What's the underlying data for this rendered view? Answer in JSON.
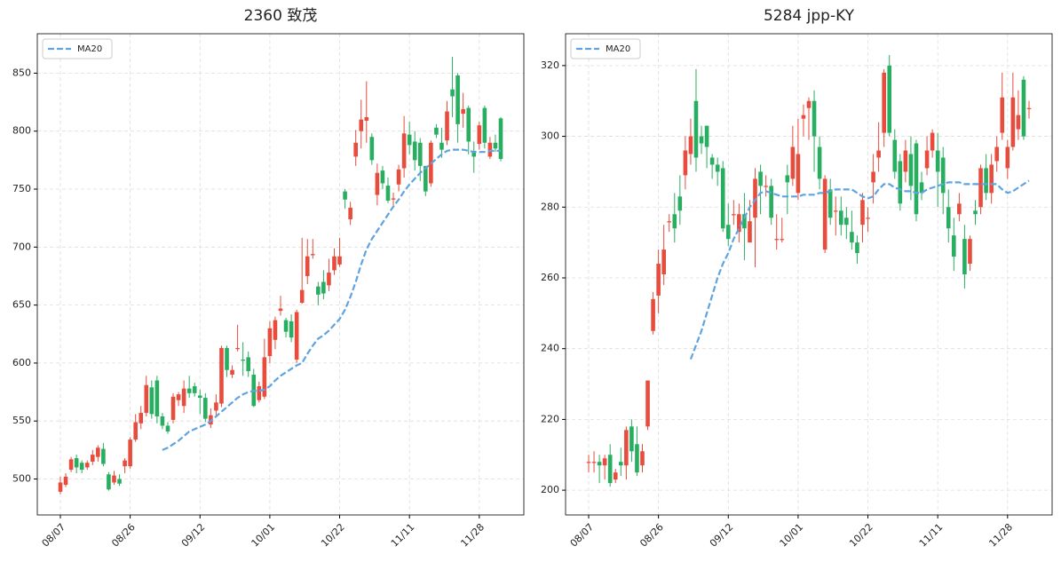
{
  "chart_data": [
    {
      "type": "candlestick",
      "title": "2360 致茂",
      "categories": [
        "08/07",
        null,
        null,
        null,
        null,
        null,
        null,
        null,
        null,
        null,
        null,
        null,
        null,
        "08/26",
        null,
        null,
        null,
        null,
        null,
        null,
        null,
        null,
        null,
        null,
        null,
        null,
        "09/12",
        null,
        null,
        null,
        null,
        null,
        null,
        null,
        null,
        null,
        null,
        null,
        null,
        "10/01",
        null,
        null,
        null,
        null,
        null,
        null,
        null,
        null,
        null,
        null,
        null,
        null,
        "10/22",
        null,
        null,
        null,
        null,
        null,
        null,
        null,
        null,
        null,
        null,
        null,
        null,
        "11/11",
        null,
        null,
        null,
        null,
        null,
        null,
        null,
        null,
        null,
        null,
        null,
        null,
        "11/28",
        null,
        null,
        null,
        null
      ],
      "open": [
        489,
        495,
        508,
        518,
        514,
        510,
        515,
        519,
        526,
        504,
        497,
        500,
        511,
        511,
        534,
        548,
        557,
        579,
        585,
        554,
        546,
        551,
        568,
        563,
        578,
        580,
        572,
        570,
        547,
        559,
        565,
        613,
        590,
        612,
        603,
        605,
        590,
        568,
        571,
        606,
        620,
        645,
        637,
        636,
        603,
        652,
        675,
        693,
        666,
        670,
        667,
        680,
        685,
        748,
        724,
        778,
        800,
        809,
        795,
        745,
        766,
        753,
        741,
        754,
        768,
        797,
        791,
        790,
        770,
        755,
        803,
        790,
        792,
        836,
        848,
        815,
        820,
        783,
        789,
        820,
        778,
        790,
        811
      ],
      "high": [
        502,
        505,
        519,
        521,
        516,
        516,
        525,
        529,
        531,
        506,
        507,
        504,
        518,
        536,
        556,
        563,
        589,
        585,
        589,
        557,
        549,
        574,
        575,
        585,
        589,
        583,
        577,
        574,
        561,
        573,
        615,
        615,
        598,
        633,
        618,
        610,
        595,
        584,
        621,
        636,
        640,
        658,
        639,
        642,
        646,
        708,
        707,
        707,
        670,
        680,
        690,
        699,
        708,
        750,
        739,
        801,
        827,
        843,
        798,
        772,
        770,
        760,
        747,
        771,
        813,
        808,
        800,
        794,
        770,
        792,
        806,
        803,
        826,
        864,
        850,
        833,
        822,
        791,
        808,
        822,
        795,
        797,
        812
      ],
      "low": [
        487,
        493,
        506,
        505,
        505,
        508,
        512,
        515,
        511,
        490,
        495,
        494,
        505,
        509,
        532,
        543,
        554,
        552,
        548,
        543,
        539,
        548,
        563,
        557,
        570,
        571,
        556,
        549,
        544,
        555,
        562,
        588,
        587,
        610,
        589,
        588,
        562,
        566,
        569,
        600,
        612,
        641,
        622,
        618,
        600,
        651,
        668,
        690,
        650,
        655,
        662,
        676,
        683,
        733,
        719,
        770,
        785,
        790,
        771,
        736,
        750,
        738,
        736,
        748,
        760,
        780,
        766,
        757,
        744,
        752,
        794,
        777,
        788,
        812,
        790,
        803,
        780,
        764,
        784,
        785,
        776,
        782,
        774
      ],
      "close": [
        497,
        502,
        517,
        510,
        508,
        514,
        521,
        527,
        513,
        491,
        503,
        496,
        516,
        534,
        549,
        557,
        581,
        556,
        554,
        546,
        541,
        571,
        573,
        578,
        574,
        574,
        570,
        552,
        555,
        566,
        613,
        594,
        594,
        613,
        602,
        593,
        563,
        580,
        605,
        630,
        637,
        647,
        627,
        622,
        644,
        663,
        692,
        694,
        659,
        660,
        678,
        692,
        692,
        741,
        734,
        790,
        810,
        812,
        775,
        764,
        755,
        740,
        742,
        767,
        798,
        788,
        775,
        770,
        748,
        790,
        797,
        784,
        817,
        830,
        806,
        819,
        791,
        778,
        805,
        790,
        790,
        785,
        776
      ],
      "up_color": "#e74c3c",
      "down_color": "#27ae60",
      "series": [
        {
          "name": "MA20",
          "color": "#5fa3e0",
          "values": [
            null,
            null,
            null,
            null,
            null,
            null,
            null,
            null,
            null,
            null,
            null,
            null,
            null,
            null,
            null,
            null,
            null,
            null,
            null,
            525,
            527,
            530,
            533,
            537,
            541,
            543,
            545,
            547,
            550,
            554,
            558,
            562,
            566,
            570,
            573,
            575,
            576,
            576,
            577,
            580,
            585,
            589,
            592,
            595,
            598,
            600,
            608,
            615,
            621,
            624,
            628,
            633,
            638,
            646,
            657,
            670,
            685,
            698,
            707,
            714,
            721,
            728,
            735,
            741,
            748,
            754,
            759,
            764,
            768,
            772,
            776,
            780,
            783,
            784,
            784,
            784,
            783,
            782,
            782,
            782,
            783,
            783,
            783
          ]
        }
      ],
      "ylim": [
        469,
        884
      ],
      "yticks": [
        500,
        550,
        600,
        650,
        700,
        750,
        800,
        850
      ],
      "grid": true,
      "legend": "upper left"
    },
    {
      "type": "candlestick",
      "title": "5284 jpp-KY",
      "categories": [
        "08/07",
        null,
        null,
        null,
        null,
        null,
        null,
        null,
        null,
        null,
        null,
        null,
        null,
        "08/26",
        null,
        null,
        null,
        null,
        null,
        null,
        null,
        null,
        null,
        null,
        null,
        null,
        "09/12",
        null,
        null,
        null,
        null,
        null,
        null,
        null,
        null,
        null,
        null,
        null,
        null,
        "10/01",
        null,
        null,
        null,
        null,
        null,
        null,
        null,
        null,
        null,
        null,
        null,
        null,
        "10/22",
        null,
        null,
        null,
        null,
        null,
        null,
        null,
        null,
        null,
        null,
        null,
        null,
        "11/11",
        null,
        null,
        null,
        null,
        null,
        null,
        null,
        null,
        null,
        null,
        null,
        null,
        "11/28",
        null,
        null,
        null,
        null
      ],
      "open": [
        208,
        208,
        208,
        207,
        210,
        203,
        208,
        207,
        218,
        213,
        207,
        218,
        245,
        255,
        261,
        276,
        278,
        283,
        289,
        295,
        310,
        300,
        303,
        294,
        292,
        291,
        275,
        278,
        273,
        278,
        270,
        277,
        290,
        286,
        286,
        271,
        271,
        289,
        288,
        284,
        305,
        308,
        310,
        297,
        268,
        285,
        279,
        279,
        277,
        273,
        270,
        275,
        277,
        287,
        294,
        301,
        320,
        299,
        293,
        290,
        295,
        298,
        287,
        291,
        296,
        296,
        294,
        280,
        272,
        278,
        271,
        264,
        279,
        280,
        291,
        284,
        293,
        301,
        291,
        297,
        302,
        316,
        308
      ],
      "high": [
        210,
        211,
        210,
        210,
        213,
        206,
        212,
        218,
        220,
        218,
        213,
        231,
        256,
        268,
        275,
        278,
        284,
        289,
        300,
        305,
        319,
        303,
        303,
        295,
        294,
        293,
        281,
        282,
        281,
        284,
        282,
        291,
        292,
        289,
        288,
        278,
        277,
        292,
        303,
        305,
        309,
        311,
        313,
        300,
        289,
        288,
        283,
        283,
        280,
        279,
        272,
        284,
        280,
        295,
        304,
        319,
        323,
        302,
        295,
        299,
        300,
        299,
        290,
        300,
        302,
        301,
        297,
        285,
        277,
        284,
        275,
        272,
        282,
        292,
        295,
        295,
        300,
        318,
        299,
        318,
        313,
        317,
        310
      ],
      "low": [
        205,
        205,
        202,
        203,
        201,
        202,
        204,
        203,
        208,
        204,
        205,
        217,
        244,
        250,
        258,
        273,
        270,
        275,
        285,
        292,
        290,
        295,
        291,
        288,
        286,
        273,
        269,
        275,
        270,
        265,
        270,
        263,
        278,
        283,
        275,
        268,
        270,
        278,
        286,
        282,
        300,
        299,
        290,
        285,
        267,
        275,
        272,
        272,
        271,
        268,
        264,
        270,
        273,
        281,
        290,
        297,
        300,
        288,
        279,
        287,
        282,
        276,
        282,
        289,
        294,
        280,
        278,
        270,
        262,
        276,
        257,
        262,
        275,
        278,
        282,
        281,
        290,
        299,
        288,
        296,
        299,
        299,
        305
      ],
      "close": [
        208,
        208,
        207,
        209,
        202,
        205,
        207,
        217,
        211,
        205,
        211,
        231,
        254,
        264,
        268,
        276,
        274,
        279,
        296,
        300,
        294,
        298,
        297,
        292,
        290,
        274,
        271,
        278,
        278,
        274,
        276,
        288,
        286,
        286,
        277,
        271,
        271,
        287,
        297,
        295,
        306,
        310,
        300,
        288,
        288,
        277,
        279,
        275,
        275,
        270,
        267,
        282,
        277,
        290,
        296,
        318,
        301,
        290,
        281,
        296,
        286,
        278,
        284,
        296,
        301,
        290,
        284,
        274,
        266,
        281,
        261,
        271,
        278,
        291,
        284,
        292,
        297,
        311,
        297,
        311,
        306,
        300,
        308
      ],
      "up_color": "#e74c3c",
      "down_color": "#27ae60",
      "series": [
        {
          "name": "MA20",
          "color": "#5fa3e0",
          "values": [
            null,
            null,
            null,
            null,
            null,
            null,
            null,
            null,
            null,
            null,
            null,
            null,
            null,
            null,
            null,
            null,
            null,
            null,
            null,
            237,
            241,
            245,
            250,
            255,
            260,
            264,
            267,
            271,
            274,
            277,
            280,
            282,
            284,
            284.5,
            284,
            283.5,
            283,
            283,
            283,
            283,
            283.5,
            283.5,
            283.5,
            284,
            284,
            284.5,
            285,
            285,
            285,
            285,
            284,
            283,
            282.5,
            283,
            285,
            286.5,
            286.5,
            285.5,
            285,
            284.5,
            284.5,
            284,
            284,
            285,
            285.5,
            286,
            286.5,
            287,
            287,
            287,
            286.5,
            286.5,
            286.5,
            286.5,
            286.5,
            286.5,
            286.5,
            285,
            284,
            284.5,
            285.5,
            286.5,
            287.5
          ]
        }
      ],
      "ylim": [
        193,
        329
      ],
      "yticks": [
        200,
        220,
        240,
        260,
        280,
        300,
        320
      ],
      "grid": true,
      "legend": "upper left"
    }
  ]
}
